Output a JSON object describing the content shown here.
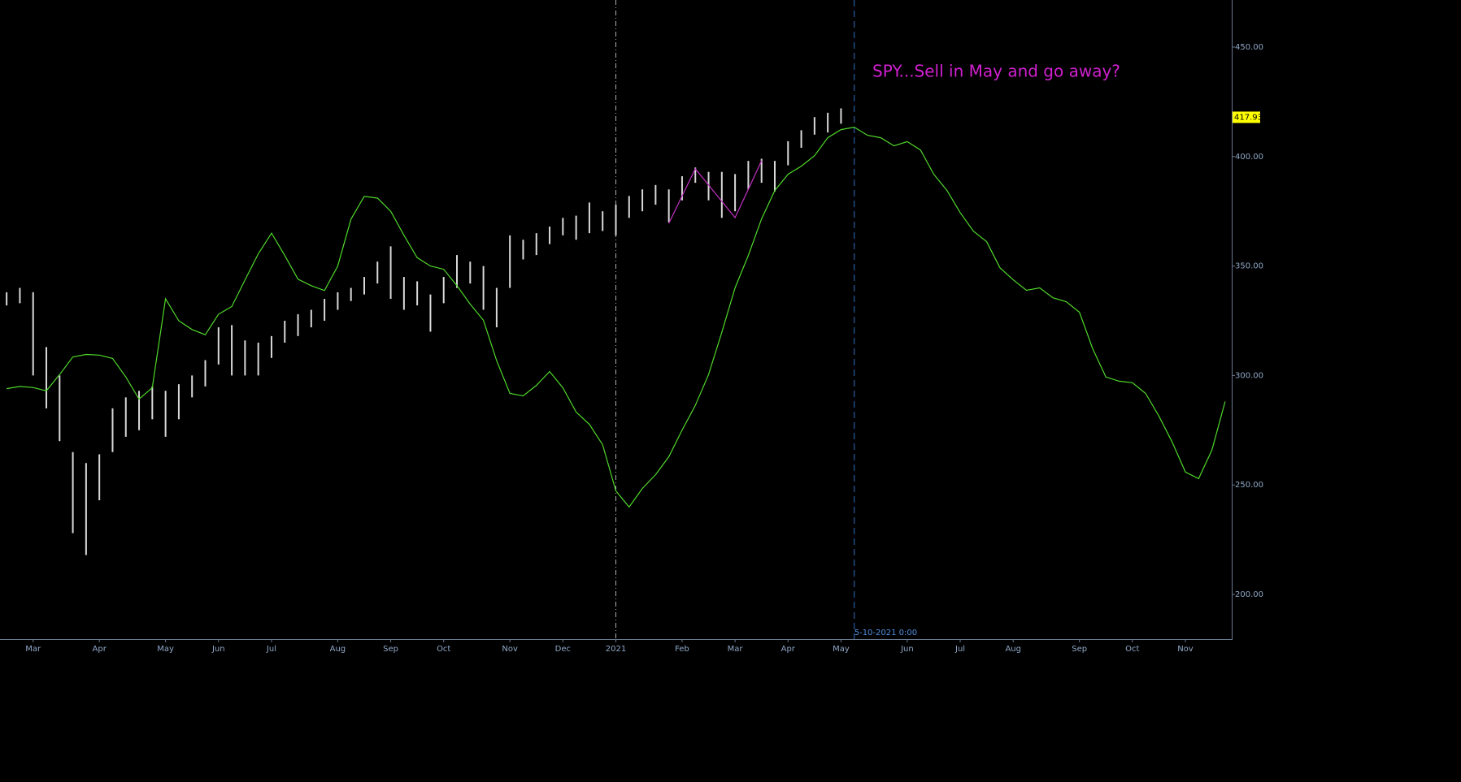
{
  "chart_data": {
    "type": "ohlc",
    "annotation": "SPY...Sell in May and go away?",
    "event_label": "5-10-2021 0:00",
    "last_price": 417.93,
    "categories": [
      null,
      null,
      "Mar",
      null,
      null,
      null,
      null,
      "Apr",
      null,
      null,
      null,
      null,
      "May",
      null,
      null,
      null,
      "Jun",
      null,
      null,
      null,
      "Jul",
      null,
      null,
      null,
      null,
      "Aug",
      null,
      null,
      null,
      "Sep",
      null,
      null,
      null,
      "Oct",
      null,
      null,
      null,
      null,
      "Nov",
      null,
      null,
      null,
      "Dec",
      null,
      null,
      null,
      "2021",
      null,
      null,
      null,
      null,
      "Feb",
      null,
      null,
      null,
      "Mar",
      null,
      null,
      null,
      "Apr",
      null,
      null,
      null,
      "May",
      null,
      null,
      null,
      null,
      "Jun",
      null,
      null,
      null,
      "Jul",
      null,
      null,
      null,
      "Aug",
      null,
      null,
      null,
      null,
      "Sep",
      null,
      null,
      null,
      "Oct",
      null,
      null,
      null,
      "Nov",
      null,
      null,
      null
    ],
    "bars": {
      "color": "#d9d9d9",
      "high": [
        338,
        340,
        338,
        313,
        300,
        265,
        260,
        264,
        285,
        290,
        293,
        295,
        293,
        296,
        300,
        307,
        322,
        323,
        316,
        315,
        318,
        325,
        328,
        330,
        335,
        338,
        340,
        345,
        352,
        359,
        345,
        343,
        337,
        345,
        355,
        352,
        350,
        340,
        364,
        362,
        365,
        368,
        372,
        373,
        379,
        375,
        378,
        382,
        385,
        387,
        385,
        391,
        395,
        393,
        393,
        392,
        398,
        399,
        398,
        407,
        412,
        418,
        420,
        422,
        null,
        null,
        null,
        null,
        null,
        null,
        null,
        null,
        null,
        null,
        null,
        null,
        null,
        null,
        null,
        null,
        null,
        null,
        null,
        null,
        null,
        null,
        null,
        null,
        null,
        null,
        null,
        null,
        null
      ],
      "low": [
        332,
        333,
        300,
        285,
        270,
        228,
        218,
        243,
        265,
        272,
        275,
        280,
        272,
        280,
        290,
        295,
        305,
        300,
        300,
        300,
        308,
        315,
        318,
        322,
        325,
        330,
        334,
        337,
        342,
        335,
        330,
        332,
        320,
        333,
        340,
        342,
        330,
        322,
        340,
        353,
        355,
        360,
        364,
        362,
        365,
        366,
        364,
        372,
        375,
        378,
        370,
        380,
        388,
        380,
        372,
        375,
        385,
        388,
        384,
        396,
        404,
        410,
        411,
        415,
        null,
        null,
        null,
        null,
        null,
        null,
        null,
        null,
        null,
        null,
        null,
        null,
        null,
        null,
        null,
        null,
        null,
        null,
        null,
        null,
        null,
        null,
        null,
        null,
        null,
        null,
        null,
        null,
        null
      ]
    },
    "line": {
      "color": "#4fd82a",
      "values": [
        294,
        295,
        294.5,
        293,
        300.4,
        308.5,
        309.6,
        309.3,
        307.8,
        299.3,
        289.2,
        294.4,
        335,
        325,
        321,
        318.6,
        328,
        331.5,
        343.7,
        355.6,
        365,
        354.8,
        344,
        341,
        338.8,
        350,
        371.4,
        381.8,
        381,
        375,
        364,
        353.8,
        350,
        348.5,
        341,
        332.6,
        325.2,
        306.7,
        291.8,
        290.7,
        295.5,
        301.8,
        294.4,
        283.3,
        277.7,
        268.4,
        247.3,
        239.9,
        248.4,
        254.7,
        262.9,
        275.1,
        286.3,
        300.4,
        319.7,
        340,
        354.8,
        371.5,
        384.5,
        391.9,
        395.6,
        400.4,
        408.6,
        412.3,
        413.4,
        409.7,
        408.6,
        404.9,
        406.8,
        403,
        391.9,
        384.5,
        374.4,
        365.9,
        361.1,
        349.2,
        343.7,
        338.9,
        340,
        335.5,
        333.7,
        328.9,
        312.2,
        299.3,
        297.4,
        296.7,
        291.8,
        281.5,
        269.6,
        255.9,
        252.9,
        265.9,
        288.1
      ]
    },
    "pattern": {
      "color": "#c431c4",
      "values": [
        null,
        null,
        null,
        null,
        null,
        null,
        null,
        null,
        null,
        null,
        null,
        null,
        null,
        null,
        null,
        null,
        null,
        null,
        null,
        null,
        null,
        null,
        null,
        null,
        null,
        null,
        null,
        null,
        null,
        null,
        null,
        null,
        null,
        null,
        null,
        null,
        null,
        null,
        null,
        null,
        null,
        null,
        null,
        null,
        null,
        null,
        null,
        null,
        null,
        null,
        369.5,
        382,
        394.4,
        387,
        379.5,
        372.1,
        385,
        398.1,
        null,
        null,
        null,
        null,
        null,
        null,
        null,
        null,
        null,
        null,
        null,
        null,
        null,
        null,
        null,
        null,
        null,
        null,
        null,
        null,
        null,
        null,
        null,
        null,
        null,
        null,
        null,
        null,
        null,
        null,
        null,
        null,
        null,
        null,
        null
      ]
    },
    "ylim": [
      179.6,
      471.5
    ],
    "yticks": [
      {
        "value": 200,
        "label": "200.00"
      },
      {
        "value": 250,
        "label": "250.00"
      },
      {
        "value": 300,
        "label": "300.00"
      },
      {
        "value": 350,
        "label": "350.00"
      },
      {
        "value": 400,
        "label": "400.00"
      },
      {
        "value": 450,
        "label": "450.00"
      }
    ]
  }
}
